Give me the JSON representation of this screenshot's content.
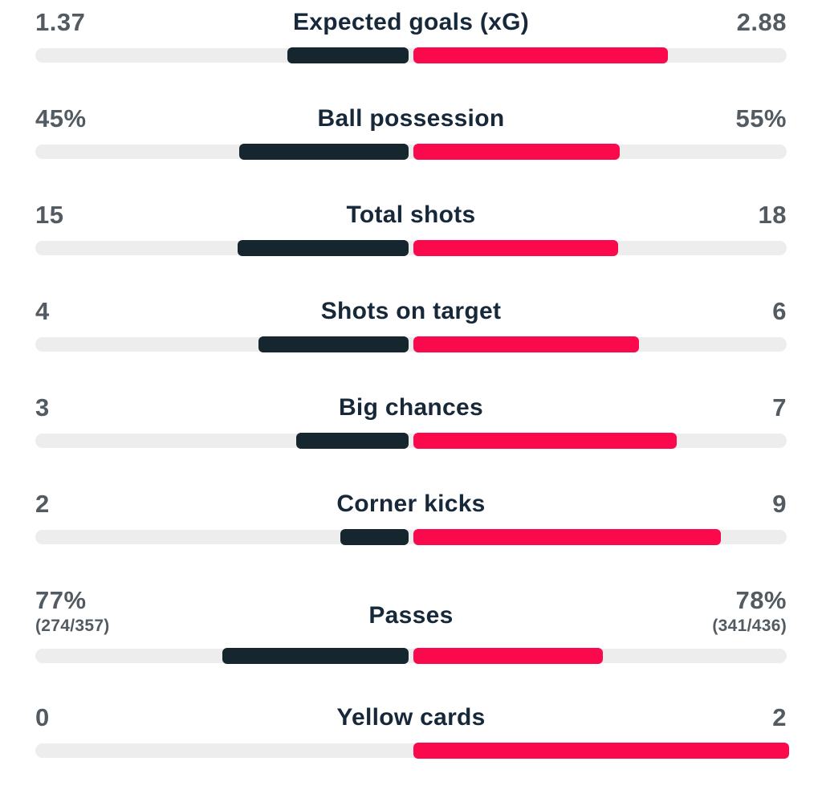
{
  "colors": {
    "home_bar": "#16262f",
    "away_bar": "#fa0a4c",
    "track": "#ededee",
    "side_value_text": "#525a62",
    "label_text": "#16283a",
    "background": "#ffffff"
  },
  "rows": [
    {
      "label": "Expected goals (xG)",
      "home": "1.37",
      "away": "2.88",
      "home_num": 1.37,
      "away_num": 2.88
    },
    {
      "label": "Ball possession",
      "home": "45%",
      "away": "55%",
      "home_num": 45,
      "away_num": 55
    },
    {
      "label": "Total shots",
      "home": "15",
      "away": "18",
      "home_num": 15,
      "away_num": 18
    },
    {
      "label": "Shots on target",
      "home": "4",
      "away": "6",
      "home_num": 4,
      "away_num": 6
    },
    {
      "label": "Big chances",
      "home": "3",
      "away": "7",
      "home_num": 3,
      "away_num": 7
    },
    {
      "label": "Corner kicks",
      "home": "2",
      "away": "9",
      "home_num": 2,
      "away_num": 9
    },
    {
      "label": "Passes",
      "home": "77%",
      "away": "78%",
      "home_sub": "(274/357)",
      "away_sub": "(341/436)",
      "home_num": 77,
      "away_num": 78
    },
    {
      "label": "Yellow cards",
      "home": "0",
      "away": "2",
      "home_num": 0,
      "away_num": 2
    }
  ],
  "chart_data": {
    "type": "bar",
    "subtype": "diverging-horizontal-match-stats",
    "categories": [
      "Expected goals (xG)",
      "Ball possession",
      "Total shots",
      "Shots on target",
      "Big chances",
      "Corner kicks",
      "Passes",
      "Yellow cards"
    ],
    "series": [
      {
        "name": "home",
        "color": "#16262f",
        "values": [
          1.37,
          45,
          15,
          4,
          3,
          2,
          77,
          0
        ],
        "display_values": [
          "1.37",
          "45%",
          "15",
          "4",
          "3",
          "2",
          "77%",
          "0"
        ],
        "sub_values": [
          null,
          null,
          null,
          null,
          null,
          null,
          "(274/357)",
          null
        ]
      },
      {
        "name": "away",
        "color": "#fa0a4c",
        "values": [
          2.88,
          55,
          18,
          6,
          7,
          9,
          78,
          2
        ],
        "display_values": [
          "2.88",
          "55%",
          "18",
          "6",
          "7",
          "9",
          "78%",
          "2"
        ],
        "sub_values": [
          null,
          null,
          null,
          null,
          null,
          null,
          "(341/436)",
          null
        ]
      }
    ],
    "layout": {
      "bars_grow_from_center": true,
      "bar_length_rule": "value / (home + away) of each row, scaled to half track width",
      "track_full_width": true,
      "legend": "none",
      "grid": false
    }
  }
}
